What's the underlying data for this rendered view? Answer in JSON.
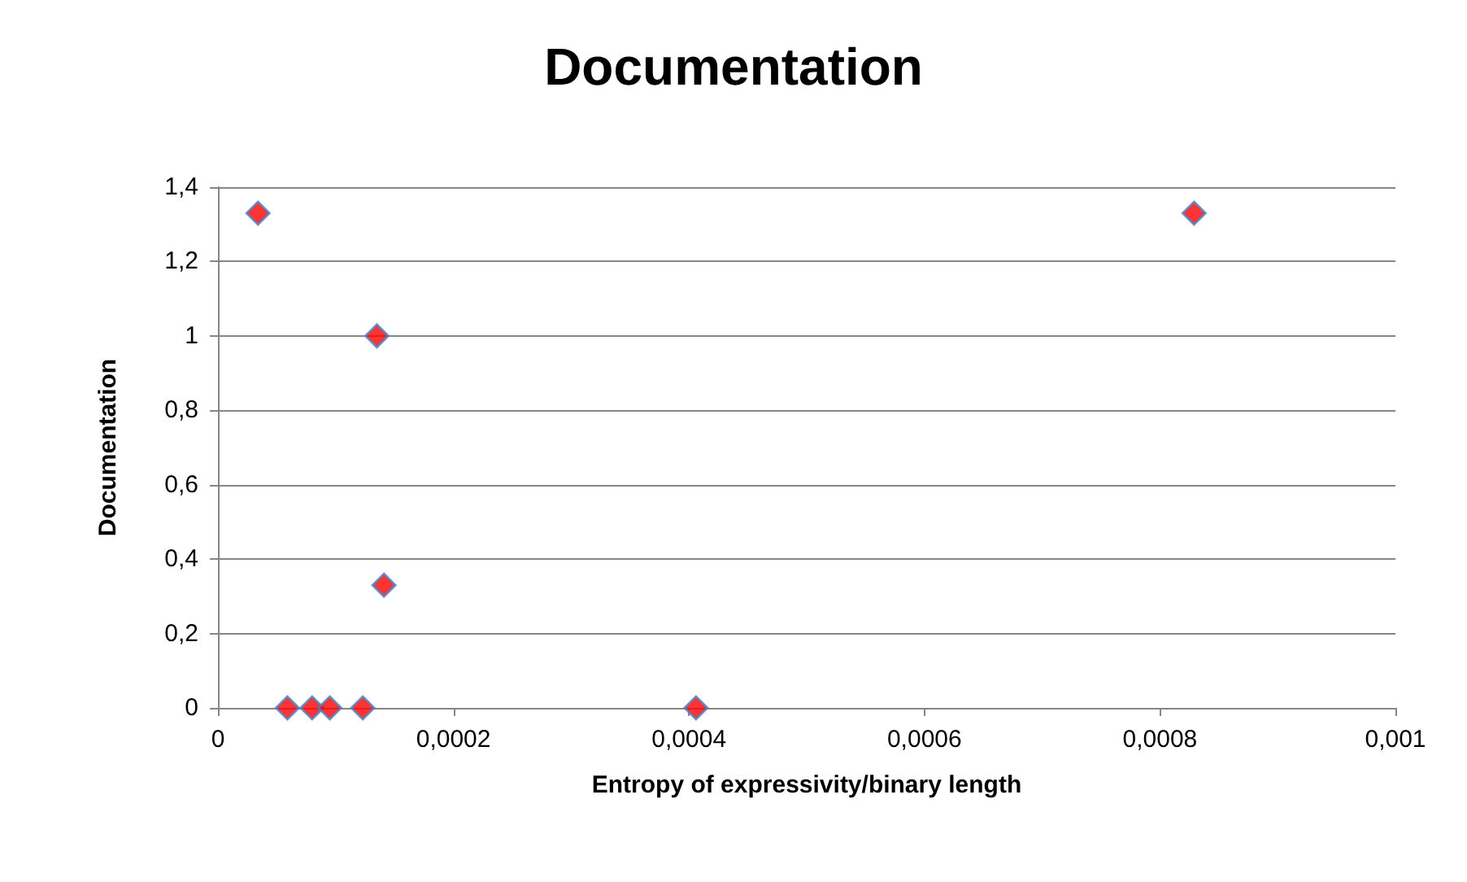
{
  "chart_data": {
    "type": "scatter",
    "title": "Documentation",
    "xlabel": "Entropy of expressivity/binary length",
    "ylabel": "Documentation",
    "x": [
      3.4e-05,
      0.000135,
      0.000141,
      5.9e-05,
      8e-05,
      9.5e-05,
      0.000123,
      0.000406,
      0.000829
    ],
    "series": [
      {
        "color": "#ff0000",
        "values": [
          1.33,
          1,
          0.33,
          0,
          0,
          0,
          0,
          0,
          1.33
        ]
      }
    ],
    "marker": "diamond",
    "grid": "y",
    "xlim": [
      0,
      0.001
    ],
    "xticks": [
      0,
      {
        "value": 0.0002,
        "label": "0,0002"
      },
      {
        "value": 0.0004,
        "label": "0,0004"
      },
      {
        "value": 0.0006,
        "label": "0,0006"
      },
      {
        "value": 0.0008,
        "label": "0,0008"
      },
      {
        "value": 0.001,
        "label": "0,001"
      }
    ],
    "ylim": [
      0,
      1.4
    ],
    "yticks": [
      0,
      {
        "value": 0.2,
        "label": "0,2"
      },
      {
        "value": 0.4,
        "label": "0,4"
      },
      {
        "value": 0.6,
        "label": "0,6"
      },
      {
        "value": 0.8,
        "label": "0,8"
      },
      1,
      {
        "value": 1.2,
        "label": "1,2"
      },
      {
        "value": 1.4,
        "label": "1,4"
      }
    ]
  }
}
